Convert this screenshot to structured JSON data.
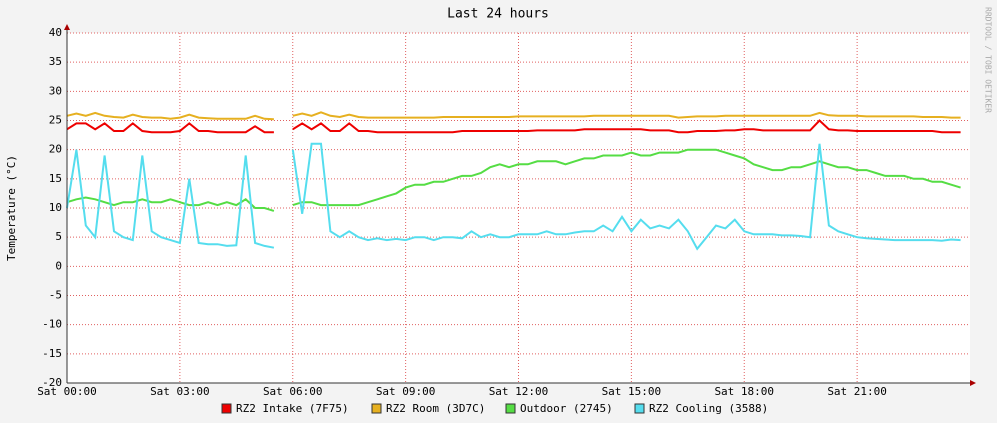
{
  "chart_data": {
    "type": "line",
    "title": "Last 24 hours",
    "y_label": "Temperature (°C)",
    "watermark": "RRDTOOL / TOBI OETIKER",
    "x": [
      0,
      0.25,
      0.5,
      0.75,
      1,
      1.25,
      1.5,
      1.75,
      2,
      2.25,
      2.5,
      2.75,
      3,
      3.25,
      3.5,
      3.75,
      4,
      4.25,
      4.5,
      4.75,
      5,
      5.25,
      5.5,
      5.75,
      6,
      6.25,
      6.5,
      6.75,
      7,
      7.25,
      7.5,
      7.75,
      8,
      8.25,
      8.5,
      8.75,
      9,
      9.25,
      9.5,
      9.75,
      10,
      10.25,
      10.5,
      10.75,
      11,
      11.25,
      11.5,
      11.75,
      12,
      12.25,
      12.5,
      12.75,
      13,
      13.25,
      13.5,
      13.75,
      14,
      14.25,
      14.5,
      14.75,
      15,
      15.25,
      15.5,
      15.75,
      16,
      16.25,
      16.5,
      16.75,
      17,
      17.25,
      17.5,
      17.75,
      18,
      18.25,
      18.5,
      18.75,
      19,
      19.25,
      19.5,
      19.75,
      20,
      20.25,
      20.5,
      20.75,
      21,
      21.25,
      21.5,
      21.75,
      22,
      22.25,
      22.5,
      22.75,
      23,
      23.25,
      23.5,
      23.75
    ],
    "xlim": [
      0,
      24
    ],
    "xticks": [
      {
        "value": 0,
        "label": "Sat 00:00"
      },
      {
        "value": 3,
        "label": "Sat 03:00"
      },
      {
        "value": 6,
        "label": "Sat 06:00"
      },
      {
        "value": 9,
        "label": "Sat 09:00"
      },
      {
        "value": 12,
        "label": "Sat 12:00"
      },
      {
        "value": 15,
        "label": "Sat 15:00"
      },
      {
        "value": 18,
        "label": "Sat 18:00"
      },
      {
        "value": 21,
        "label": "Sat 21:00"
      }
    ],
    "ylim": [
      -20,
      40
    ],
    "yticks": [
      -20,
      -15,
      -10,
      -5,
      0,
      5,
      10,
      15,
      20,
      25,
      30,
      35,
      40
    ],
    "grid": true,
    "series": [
      {
        "name": "RZ2 Intake (7F75)",
        "color": "#ee0000",
        "values": [
          23.5,
          24.5,
          24.5,
          23.5,
          24.5,
          23.2,
          23.2,
          24.5,
          23.2,
          23,
          23,
          23,
          23.2,
          24.5,
          23.2,
          23.2,
          23,
          23,
          23,
          23,
          24,
          23,
          23,
          null,
          23.5,
          24.5,
          23.5,
          24.5,
          23.2,
          23.2,
          24.5,
          23.2,
          23.2,
          23,
          23,
          23,
          23,
          23,
          23,
          23,
          23,
          23,
          23.2,
          23.2,
          23.2,
          23.2,
          23.2,
          23.2,
          23.2,
          23.2,
          23.3,
          23.3,
          23.3,
          23.3,
          23.3,
          23.5,
          23.5,
          23.5,
          23.5,
          23.5,
          23.5,
          23.5,
          23.3,
          23.3,
          23.3,
          23,
          23,
          23.2,
          23.2,
          23.2,
          23.3,
          23.3,
          23.5,
          23.5,
          23.3,
          23.3,
          23.3,
          23.3,
          23.3,
          23.3,
          25,
          23.5,
          23.3,
          23.3,
          23.2,
          23.2,
          23.2,
          23.2,
          23.2,
          23.2,
          23.2,
          23.2,
          23.2,
          23,
          23,
          23
        ]
      },
      {
        "name": "RZ2 Room (3D7C)",
        "color": "#e6b020",
        "values": [
          25.8,
          26.2,
          25.8,
          26.3,
          25.8,
          25.6,
          25.5,
          26,
          25.6,
          25.5,
          25.5,
          25.3,
          25.5,
          26,
          25.5,
          25.4,
          25.3,
          25.3,
          25.3,
          25.3,
          25.8,
          25.3,
          25.2,
          null,
          25.8,
          26.2,
          25.8,
          26.4,
          25.8,
          25.6,
          26,
          25.6,
          25.5,
          25.5,
          25.5,
          25.5,
          25.5,
          25.5,
          25.5,
          25.5,
          25.6,
          25.6,
          25.6,
          25.6,
          25.6,
          25.6,
          25.6,
          25.6,
          25.7,
          25.7,
          25.7,
          25.7,
          25.7,
          25.7,
          25.7,
          25.7,
          25.8,
          25.8,
          25.8,
          25.8,
          25.8,
          25.8,
          25.8,
          25.8,
          25.8,
          25.5,
          25.6,
          25.7,
          25.7,
          25.7,
          25.8,
          25.8,
          25.8,
          25.8,
          25.8,
          25.8,
          25.8,
          25.8,
          25.8,
          25.8,
          26.3,
          25.9,
          25.8,
          25.8,
          25.8,
          25.7,
          25.7,
          25.7,
          25.7,
          25.7,
          25.7,
          25.6,
          25.6,
          25.6,
          25.5,
          25.5
        ]
      },
      {
        "name": "Outdoor (2745)",
        "color": "#55dd44",
        "values": [
          11,
          11.5,
          11.8,
          11.5,
          11,
          10.5,
          11,
          11,
          11.5,
          11,
          11,
          11.5,
          11,
          10.5,
          10.5,
          11,
          10.5,
          11,
          10.5,
          11.5,
          10,
          10,
          9.5,
          null,
          10.5,
          11,
          11,
          10.5,
          10.5,
          10.5,
          10.5,
          10.5,
          11,
          11.5,
          12,
          12.5,
          13.5,
          14,
          14,
          14.5,
          14.5,
          15,
          15.5,
          15.5,
          16,
          17,
          17.5,
          17,
          17.5,
          17.5,
          18,
          18,
          18,
          17.5,
          18,
          18.5,
          18.5,
          19,
          19,
          19,
          19.5,
          19,
          19,
          19.5,
          19.5,
          19.5,
          20,
          20,
          20,
          20,
          19.5,
          19,
          18.5,
          17.5,
          17,
          16.5,
          16.5,
          17,
          17,
          17.5,
          18,
          17.5,
          17,
          17,
          16.5,
          16.5,
          16,
          15.5,
          15.5,
          15.5,
          15,
          15,
          14.5,
          14.5,
          14,
          13.5
        ]
      },
      {
        "name": "RZ2 Cooling (3588)",
        "color": "#55ddee",
        "values": [
          10,
          20,
          7,
          5,
          19,
          6,
          5,
          4.5,
          19,
          6,
          5,
          4.5,
          4,
          15,
          4,
          3.8,
          3.8,
          3.5,
          3.6,
          19,
          4,
          3.5,
          3.2,
          null,
          20,
          9,
          21,
          21,
          6,
          5,
          6,
          5,
          4.5,
          4.8,
          4.5,
          4.7,
          4.5,
          5,
          5,
          4.5,
          5,
          5,
          4.8,
          6,
          5,
          5.5,
          5,
          5,
          5.5,
          5.5,
          5.5,
          6,
          5.5,
          5.5,
          5.8,
          6,
          6,
          7,
          6,
          8.5,
          6,
          8,
          6.5,
          7,
          6.5,
          8,
          6,
          3,
          5,
          7,
          6.5,
          8,
          6,
          5.5,
          5.5,
          5.5,
          5.3,
          5.3,
          5.2,
          5,
          21,
          7,
          6,
          5.5,
          5,
          4.8,
          4.7,
          4.6,
          4.5,
          4.5,
          4.5,
          4.5,
          4.5,
          4.4,
          4.6,
          4.5
        ]
      }
    ]
  }
}
